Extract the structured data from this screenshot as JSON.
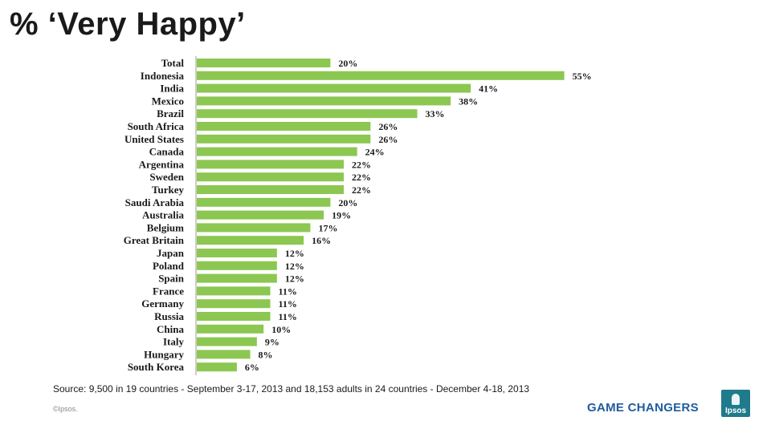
{
  "page": {
    "title": "% ‘Very Happy’",
    "source": "Source: 9,500 in 19 countries - September 3-17, 2013 and 18,153 adults in 24 countries - December 4-18, 2013",
    "copyright": "©Ipsos.",
    "tagline": "GAME CHANGERS",
    "logo_text": "Ipsos"
  },
  "colors": {
    "bar": "#8cc751",
    "text": "#1a1a1a",
    "brand_blue": "#1f5c9e",
    "logo": "#1f7a8c"
  },
  "chart_data": {
    "type": "bar",
    "orientation": "horizontal",
    "title": "% ‘Very Happy’",
    "xlabel": "",
    "ylabel": "",
    "xlim": [
      0,
      60
    ],
    "grid": false,
    "legend": "none",
    "categories": [
      "Total",
      "Indonesia",
      "India",
      "Mexico",
      "Brazil",
      "South Africa",
      "United States",
      "Canada",
      "Argentina",
      "Sweden",
      "Turkey",
      "Saudi Arabia",
      "Australia",
      "Belgium",
      "Great Britain",
      "Japan",
      "Poland",
      "Spain",
      "France",
      "Germany",
      "Russia",
      "China",
      "Italy",
      "Hungary",
      "South Korea"
    ],
    "values": [
      20,
      55,
      41,
      38,
      33,
      26,
      26,
      24,
      22,
      22,
      22,
      20,
      19,
      17,
      16,
      12,
      12,
      12,
      11,
      11,
      11,
      10,
      9,
      8,
      6
    ],
    "value_labels": [
      "20%",
      "55%",
      "41%",
      "38%",
      "33%",
      "26%",
      "26%",
      "24%",
      "22%",
      "22%",
      "22%",
      "20%",
      "19%",
      "17%",
      "16%",
      "12%",
      "12%",
      "12%",
      "11%",
      "11%",
      "11%",
      "10%",
      "9%",
      "8%",
      "6%"
    ]
  }
}
